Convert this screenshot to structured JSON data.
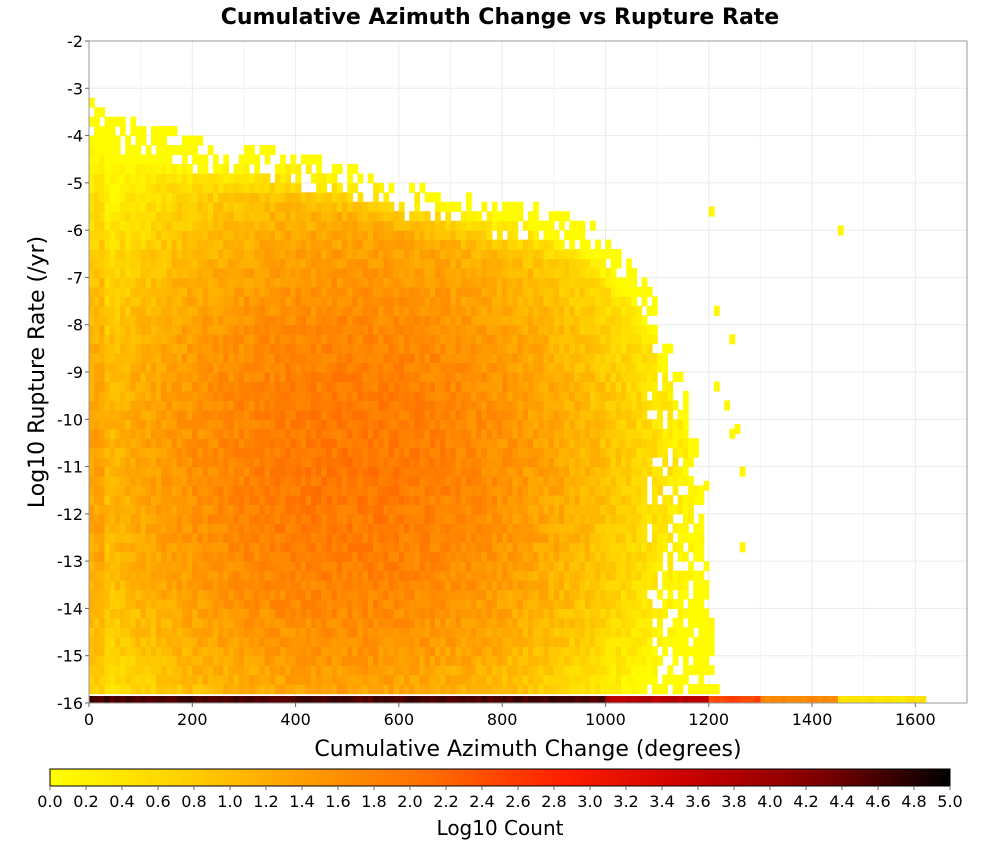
{
  "chart_data": {
    "type": "heatmap",
    "title": "Cumulative Azimuth Change vs Rupture Rate",
    "xlabel": "Cumulative Azimuth Change (degrees)",
    "ylabel": "Log10 Rupture Rate (/yr)",
    "xlim": [
      0,
      1700
    ],
    "ylim": [
      -16,
      -2
    ],
    "x_ticks": [
      0,
      200,
      400,
      600,
      800,
      1000,
      1200,
      1400,
      1600
    ],
    "y_ticks": [
      -2,
      -3,
      -4,
      -5,
      -6,
      -7,
      -8,
      -9,
      -10,
      -11,
      -12,
      -13,
      -14,
      -15,
      -16
    ],
    "x_bin_width": 10,
    "y_bin_width": 0.2,
    "grid": true,
    "colorbar": {
      "label": "Log10 Count",
      "range": [
        0.0,
        5.0
      ],
      "ticks": [
        "0.0",
        "0.2",
        "0.4",
        "0.6",
        "0.8",
        "1.0",
        "1.2",
        "1.4",
        "1.6",
        "1.8",
        "2.0",
        "2.2",
        "2.4",
        "2.6",
        "2.8",
        "3.0",
        "3.2",
        "3.4",
        "3.6",
        "3.8",
        "4.0",
        "4.2",
        "4.4",
        "4.6",
        "4.8",
        "5.0"
      ],
      "colors": [
        "#ffff00",
        "#ffd200",
        "#ff9c00",
        "#ff6a00",
        "#ff1e00",
        "#c80000",
        "#7d0000",
        "#000000"
      ]
    },
    "boundary_upper": [
      [
        0,
        -3.3
      ],
      [
        50,
        -3.7
      ],
      [
        150,
        -3.9
      ],
      [
        250,
        -4.3
      ],
      [
        330,
        -4.3
      ],
      [
        450,
        -4.6
      ],
      [
        520,
        -4.8
      ],
      [
        600,
        -5.1
      ],
      [
        700,
        -5.3
      ],
      [
        780,
        -5.5
      ],
      [
        870,
        -5.6
      ],
      [
        950,
        -5.8
      ],
      [
        1000,
        -6.2
      ],
      [
        1050,
        -6.8
      ],
      [
        1100,
        -7.6
      ],
      [
        1130,
        -8.6
      ],
      [
        1160,
        -9.6
      ],
      [
        1180,
        -10.8
      ],
      [
        1190,
        -12
      ],
      [
        1200,
        -13.6
      ],
      [
        1210,
        -15.2
      ],
      [
        1220,
        -15.8
      ]
    ],
    "peak": [
      500,
      -11
    ],
    "bottom_row": {
      "y": -15.9,
      "x_max": 1620,
      "segments": [
        {
          "x_from": 0,
          "x_to": 1000,
          "log10_count": 4.6
        },
        {
          "x_from": 1000,
          "x_to": 1200,
          "log10_count": 3.7
        },
        {
          "x_from": 1200,
          "x_to": 1300,
          "log10_count": 2.5
        },
        {
          "x_from": 1300,
          "x_to": 1450,
          "log10_count": 1.7
        },
        {
          "x_from": 1450,
          "x_to": 1620,
          "log10_count": 0.4
        }
      ]
    },
    "outlier_bins": [
      [
        1200,
        -5.7
      ],
      [
        1210,
        -7.8
      ],
      [
        1240,
        -8.4
      ],
      [
        1230,
        -9.8
      ],
      [
        1240,
        -10.4
      ],
      [
        1250,
        -10.3
      ],
      [
        1260,
        -11.2
      ],
      [
        1260,
        -12.8
      ],
      [
        1450,
        -6.1
      ],
      [
        1210,
        -9.4
      ],
      [
        1200,
        -14.4
      ],
      [
        1150,
        -12.4
      ],
      [
        1180,
        -12.6
      ],
      [
        1190,
        -11.5
      ]
    ]
  }
}
